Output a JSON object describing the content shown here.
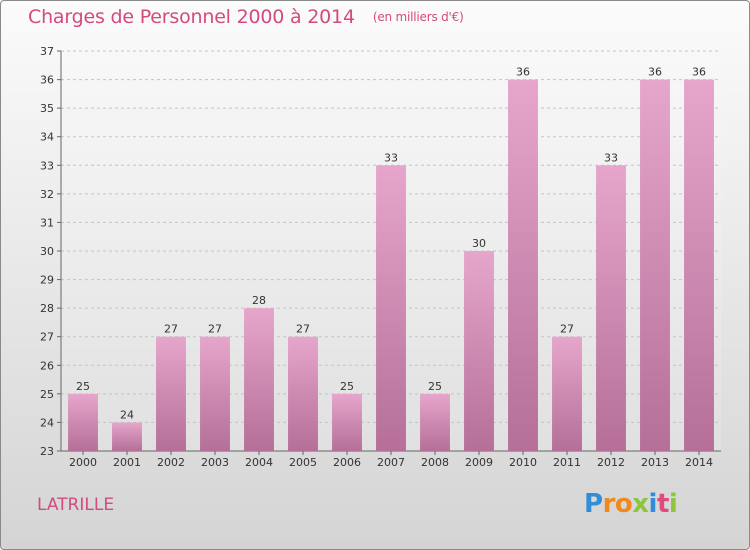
{
  "header": {
    "title": "Charges de Personnel 2000 à 2014",
    "unit": "(en milliers d'€)"
  },
  "footer": {
    "commune": "LATRILLE",
    "logo": "Proxiti"
  },
  "colors": {
    "title": "#d44a80",
    "bar_light": "#e6a6cb",
    "bar_dark": "#b56f98"
  },
  "chart_data": {
    "type": "bar",
    "title": "Charges de Personnel 2000 à 2014",
    "subtitle": "(en milliers d'€)",
    "xlabel": "",
    "ylabel": "",
    "categories": [
      "2000",
      "2001",
      "2002",
      "2003",
      "2004",
      "2005",
      "2006",
      "2007",
      "2008",
      "2009",
      "2010",
      "2011",
      "2012",
      "2013",
      "2014"
    ],
    "values": [
      25,
      24,
      27,
      27,
      28,
      27,
      25,
      33,
      25,
      30,
      36,
      27,
      33,
      36,
      36
    ],
    "ylim": [
      23,
      37
    ],
    "yticks": [
      23,
      24,
      25,
      26,
      27,
      28,
      29,
      30,
      31,
      32,
      33,
      34,
      35,
      36,
      37
    ],
    "grid": true,
    "data_labels": true
  }
}
